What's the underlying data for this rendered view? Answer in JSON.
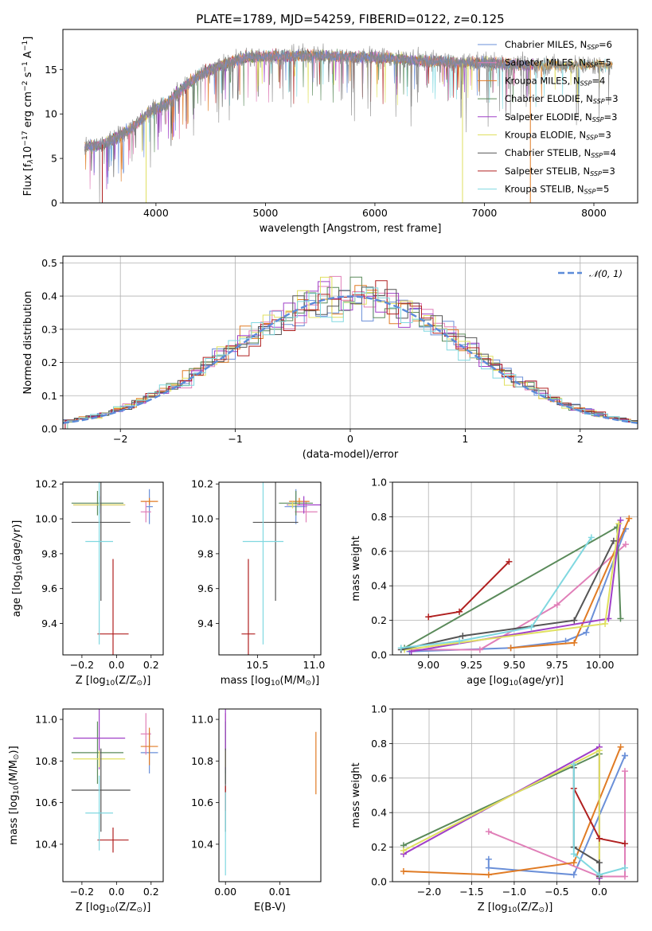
{
  "figure": {
    "title": "PLATE=1789, MJD=54259, FIBERID=0122, z=0.125"
  },
  "series_colors": {
    "Chabrier MILES": "#6a8fd8",
    "Salpeter MILES": "#e07fb8",
    "Kroupa MILES": "#e07b24",
    "Chabrier ELODIE": "#5a8a5a",
    "Salpeter ELODIE": "#a040c8",
    "Kroupa ELODIE": "#e0e060",
    "Chabrier STELIB": "#555555",
    "Salpeter STELIB": "#b02020",
    "Kroupa STELIB": "#80d8e0",
    "normal_curve": "#5b8bd9",
    "data_trace": "#888888"
  },
  "chart_data": [
    {
      "id": "spectrum",
      "type": "line",
      "xlabel": "wavelength [Angstrom, rest frame]",
      "ylabel": "Flux [fλ10⁻¹⁷ erg cm⁻² s⁻¹ A⁻¹]",
      "xlim": [
        3150,
        8400
      ],
      "ylim": [
        0,
        19.5
      ],
      "xticks": [
        4000,
        5000,
        6000,
        7000,
        8000
      ],
      "yticks": [
        0,
        5,
        10,
        15
      ],
      "legend_position": "right",
      "legend": [
        "Chabrier MILES, N_SSP=6",
        "Salpeter MILES, N_SSP=5",
        "Kroupa MILES, N_SSP=4",
        "Chabrier ELODIE, N_SSP=3",
        "Salpeter ELODIE, N_SSP=3",
        "Kroupa ELODIE, N_SSP=3",
        "Chabrier STELIB, N_SSP=4",
        "Salpeter STELIB, N_SSP=3",
        "Kroupa STELIB, N_SSP=5"
      ],
      "continuum": {
        "x": [
          3350,
          3500,
          3650,
          3800,
          3950,
          4100,
          4250,
          4400,
          4600,
          4800,
          5000,
          5200,
          5400,
          5600,
          5800,
          6000,
          6200,
          6400,
          6600,
          6800,
          7000,
          7200,
          7400
        ],
        "y": [
          6.3,
          6.5,
          7.4,
          8.6,
          10.3,
          11.2,
          13.0,
          14.4,
          15.5,
          16.3,
          16.5,
          16.5,
          16.6,
          16.5,
          16.4,
          16.4,
          16.2,
          16.0,
          15.9,
          15.7,
          15.8,
          15.6,
          15.5
        ]
      },
      "data_extent": [
        3350,
        8170
      ]
    },
    {
      "id": "residuals",
      "type": "histogram",
      "xlabel": "(data-model)/error",
      "ylabel": "Normed distribution",
      "xlim": [
        -2.5,
        2.5
      ],
      "ylim": [
        0,
        0.52
      ],
      "xticks": [
        -2,
        -1,
        0,
        1,
        2
      ],
      "yticks": [
        0.0,
        0.1,
        0.2,
        0.3,
        0.4,
        0.5
      ],
      "grid": true,
      "legend_position": "top-right",
      "curve_label": "𝒩(0, 1)",
      "bin_width": 0.1
    },
    {
      "id": "Z_vs_age",
      "type": "errorbar",
      "xlabel": "Z [log₁₀(Z/Z⊙)]",
      "ylabel": "age  [log₁₀(age/yr)]",
      "xlim": [
        -0.31,
        0.27
      ],
      "ylim": [
        9.22,
        10.21
      ],
      "xticks": [
        -0.2,
        0.0,
        0.2
      ],
      "yticks": [
        9.4,
        9.6,
        9.8,
        10.0,
        10.2
      ],
      "points": [
        {
          "model": "Chabrier MILES",
          "x": 0.19,
          "xerr": 0.02,
          "y": 10.07,
          "yerr": 0.1
        },
        {
          "model": "Salpeter MILES",
          "x": 0.17,
          "xerr": 0.03,
          "y": 10.04,
          "yerr": 0.06
        },
        {
          "model": "Kroupa MILES",
          "x": 0.19,
          "xerr": 0.05,
          "y": 10.1,
          "yerr": 0.02
        },
        {
          "model": "Chabrier ELODIE",
          "x": -0.11,
          "xerr": 0.15,
          "y": 10.09,
          "yerr": 0.07
        },
        {
          "model": "Salpeter ELODIE",
          "x": -0.1,
          "xerr": 0.15,
          "y": 10.08,
          "yerr": 0.05
        },
        {
          "model": "Kroupa ELODIE",
          "x": -0.1,
          "xerr": 0.15,
          "y": 10.08,
          "yerr": 0.02
        },
        {
          "model": "Chabrier STELIB",
          "x": -0.09,
          "xerr": 0.17,
          "y": 9.98,
          "yerr": 0.45
        },
        {
          "model": "Salpeter STELIB",
          "x": -0.02,
          "xerr": 0.09,
          "y": 9.34,
          "yerr": 0.43
        },
        {
          "model": "Kroupa STELIB",
          "x": -0.1,
          "xerr": 0.08,
          "y": 9.87,
          "yerr": 0.59
        }
      ]
    },
    {
      "id": "mass_vs_age",
      "type": "errorbar",
      "xlabel": "mass [log₁₀(M/M⊙)]",
      "ylabel": "",
      "xlim": [
        10.16,
        11.06
      ],
      "ylim": [
        9.22,
        10.21
      ],
      "xticks": [
        10.5,
        11.0
      ],
      "yticks": [
        9.4,
        9.6,
        9.8,
        10.0,
        10.2
      ],
      "points": [
        {
          "model": "Chabrier MILES",
          "x": 10.84,
          "xerr": 0.1,
          "y": 10.07,
          "yerr": 0.1
        },
        {
          "model": "Salpeter MILES",
          "x": 10.93,
          "xerr": 0.1,
          "y": 10.04,
          "yerr": 0.06
        },
        {
          "model": "Kroupa MILES",
          "x": 10.87,
          "xerr": 0.09,
          "y": 10.1,
          "yerr": 0.02
        },
        {
          "model": "Chabrier ELODIE",
          "x": 10.84,
          "xerr": 0.15,
          "y": 10.09,
          "yerr": 0.07
        },
        {
          "model": "Salpeter ELODIE",
          "x": 10.91,
          "xerr": 0.15,
          "y": 10.08,
          "yerr": 0.05
        },
        {
          "model": "Kroupa ELODIE",
          "x": 10.81,
          "xerr": 0.04,
          "y": 10.08,
          "yerr": 0.02
        },
        {
          "model": "Chabrier STELIB",
          "x": 10.66,
          "xerr": 0.2,
          "y": 9.98,
          "yerr": 0.45
        },
        {
          "model": "Salpeter STELIB",
          "x": 10.42,
          "xerr": 0.06,
          "y": 9.34,
          "yerr": 0.43
        },
        {
          "model": "Kroupa STELIB",
          "x": 10.55,
          "xerr": 0.18,
          "y": 9.87,
          "yerr": 0.59
        }
      ]
    },
    {
      "id": "age_vs_weight",
      "type": "line",
      "xlabel": "age  [log₁₀(age/yr)]",
      "ylabel": "mass weight",
      "xlim": [
        8.79,
        10.22
      ],
      "ylim": [
        0,
        1.0
      ],
      "xticks": [
        9.0,
        9.25,
        9.5,
        9.75,
        10.0
      ],
      "yticks": [
        0.0,
        0.2,
        0.4,
        0.6,
        0.8,
        1.0
      ],
      "grid": true,
      "series": [
        {
          "model": "Chabrier MILES",
          "x": [
            8.89,
            9.48,
            9.8,
            9.92,
            10.15
          ],
          "y": [
            0.02,
            0.04,
            0.08,
            0.13,
            0.73
          ]
        },
        {
          "model": "Salpeter MILES",
          "x": [
            8.9,
            9.3,
            9.75,
            10.15
          ],
          "y": [
            0.03,
            0.03,
            0.29,
            0.64
          ]
        },
        {
          "model": "Kroupa MILES",
          "x": [
            9.48,
            9.85,
            10.17
          ],
          "y": [
            0.04,
            0.07,
            0.79
          ]
        },
        {
          "model": "Chabrier ELODIE",
          "x": [
            8.86,
            10.1,
            10.12
          ],
          "y": [
            0.04,
            0.74,
            0.21
          ]
        },
        {
          "model": "Salpeter ELODIE",
          "x": [
            8.9,
            10.05,
            10.12
          ],
          "y": [
            0.02,
            0.21,
            0.78
          ]
        },
        {
          "model": "Kroupa ELODIE",
          "x": [
            8.86,
            10.03,
            10.11
          ],
          "y": [
            0.03,
            0.18,
            0.76
          ]
        },
        {
          "model": "Chabrier STELIB",
          "x": [
            8.84,
            9.2,
            9.85,
            10.08
          ],
          "y": [
            0.03,
            0.11,
            0.2,
            0.66
          ]
        },
        {
          "model": "Salpeter STELIB",
          "x": [
            9.0,
            9.18,
            9.47
          ],
          "y": [
            0.22,
            0.25,
            0.54
          ]
        },
        {
          "model": "Kroupa STELIB",
          "x": [
            8.84,
            9.18,
            9.6,
            9.95
          ],
          "y": [
            0.04,
            0.08,
            0.16,
            0.68
          ]
        }
      ]
    },
    {
      "id": "Z_vs_mass",
      "type": "errorbar",
      "xlabel": "Z [log₁₀(Z/Z⊙)]",
      "ylabel": "mass [log₁₀(M/M⊙)]",
      "xlim": [
        -0.31,
        0.27
      ],
      "ylim": [
        10.22,
        11.05
      ],
      "xticks": [
        -0.2,
        0.0,
        0.2
      ],
      "yticks": [
        10.4,
        10.6,
        10.8,
        11.0
      ],
      "points": [
        {
          "model": "Chabrier MILES",
          "x": 0.19,
          "xerr": 0.05,
          "y": 10.84,
          "yerr": 0.1
        },
        {
          "model": "Salpeter MILES",
          "x": 0.17,
          "xerr": 0.03,
          "y": 10.93,
          "yerr": 0.1
        },
        {
          "model": "Kroupa MILES",
          "x": 0.19,
          "xerr": 0.05,
          "y": 10.87,
          "yerr": 0.09
        },
        {
          "model": "Chabrier ELODIE",
          "x": -0.11,
          "xerr": 0.15,
          "y": 10.84,
          "yerr": 0.15
        },
        {
          "model": "Salpeter ELODIE",
          "x": -0.1,
          "xerr": 0.15,
          "y": 10.91,
          "yerr": 0.15
        },
        {
          "model": "Kroupa ELODIE",
          "x": -0.1,
          "xerr": 0.15,
          "y": 10.81,
          "yerr": 0.04
        },
        {
          "model": "Chabrier STELIB",
          "x": -0.09,
          "xerr": 0.17,
          "y": 10.66,
          "yerr": 0.2
        },
        {
          "model": "Salpeter STELIB",
          "x": -0.02,
          "xerr": 0.09,
          "y": 10.42,
          "yerr": 0.06
        },
        {
          "model": "Kroupa STELIB",
          "x": -0.1,
          "xerr": 0.08,
          "y": 10.55,
          "yerr": 0.18
        }
      ]
    },
    {
      "id": "ebv_vs_mass",
      "type": "errorbar",
      "xlabel": "E(B-V)",
      "ylabel": "",
      "xlim": [
        -0.0012,
        0.0175
      ],
      "ylim": [
        10.22,
        11.05
      ],
      "xticks": [
        0.0,
        0.01
      ],
      "yticks": [
        10.4,
        10.6,
        10.8,
        11.0
      ],
      "points": [
        {
          "model": "Chabrier MILES",
          "x": 0.0,
          "xerr": 0,
          "y": 10.84,
          "yerr": 0.1
        },
        {
          "model": "Salpeter MILES",
          "x": 0.0,
          "xerr": 0,
          "y": 10.93,
          "yerr": 0.1
        },
        {
          "model": "Kroupa MILES",
          "x": 0.0166,
          "xerr": 0,
          "y": 10.79,
          "yerr": 0.15
        },
        {
          "model": "Chabrier ELODIE",
          "x": 0.0,
          "xerr": 0,
          "y": 10.84,
          "yerr": 0.15
        },
        {
          "model": "Salpeter ELODIE",
          "x": 0.0,
          "xerr": 0,
          "y": 10.91,
          "yerr": 0.15
        },
        {
          "model": "Kroupa ELODIE",
          "x": 0.0,
          "xerr": 0,
          "y": 10.81,
          "yerr": 0.04
        },
        {
          "model": "Chabrier STELIB",
          "x": 0.0,
          "xerr": 0,
          "y": 10.66,
          "yerr": 0.2
        },
        {
          "model": "Salpeter STELIB",
          "x": 0.0,
          "xerr": 0,
          "y": 10.62,
          "yerr": 0.06
        },
        {
          "model": "Kroupa STELIB",
          "x": 0.0,
          "xerr": 0,
          "y": 10.45,
          "yerr": 0.2
        }
      ]
    },
    {
      "id": "Z_vs_weight",
      "type": "line",
      "xlabel": "Z [log₁₀(Z/Z⊙)]",
      "ylabel": "mass weight",
      "xlim": [
        -2.43,
        0.45
      ],
      "ylim": [
        0,
        1.0
      ],
      "xticks": [
        -2.0,
        -1.5,
        -1.0,
        -0.5,
        0.0
      ],
      "yticks": [
        0.0,
        0.2,
        0.4,
        0.6,
        0.8,
        1.0
      ],
      "grid": true,
      "series": [
        {
          "model": "Chabrier MILES",
          "x": [
            -1.3,
            -1.3,
            -0.3,
            0.3,
            0.3
          ],
          "y": [
            0.13,
            0.08,
            0.04,
            0.73,
            0.73
          ]
        },
        {
          "model": "Salpeter MILES",
          "x": [
            -1.3,
            0.0,
            0.3,
            0.3
          ],
          "y": [
            0.29,
            0.03,
            0.03,
            0.64
          ]
        },
        {
          "model": "Kroupa MILES",
          "x": [
            -2.3,
            -1.3,
            -0.3,
            0.25
          ],
          "y": [
            0.06,
            0.04,
            0.11,
            0.78
          ]
        },
        {
          "model": "Chabrier ELODIE",
          "x": [
            -2.3,
            0.0,
            0.0
          ],
          "y": [
            0.21,
            0.74,
            0.04
          ]
        },
        {
          "model": "Salpeter ELODIE",
          "x": [
            -2.3,
            0.0,
            0.0
          ],
          "y": [
            0.16,
            0.78,
            0.02
          ]
        },
        {
          "model": "Kroupa ELODIE",
          "x": [
            -2.3,
            0.0,
            0.0
          ],
          "y": [
            0.18,
            0.76,
            0.03
          ]
        },
        {
          "model": "Chabrier STELIB",
          "x": [
            -0.3,
            -0.3,
            0.0,
            0.0
          ],
          "y": [
            0.66,
            0.2,
            0.11,
            0.03
          ]
        },
        {
          "model": "Salpeter STELIB",
          "x": [
            -0.3,
            0.0,
            0.3
          ],
          "y": [
            0.54,
            0.25,
            0.22
          ]
        },
        {
          "model": "Kroupa STELIB",
          "x": [
            -0.3,
            -0.3,
            0.0,
            0.3
          ],
          "y": [
            0.68,
            0.16,
            0.04,
            0.08
          ]
        }
      ]
    }
  ]
}
